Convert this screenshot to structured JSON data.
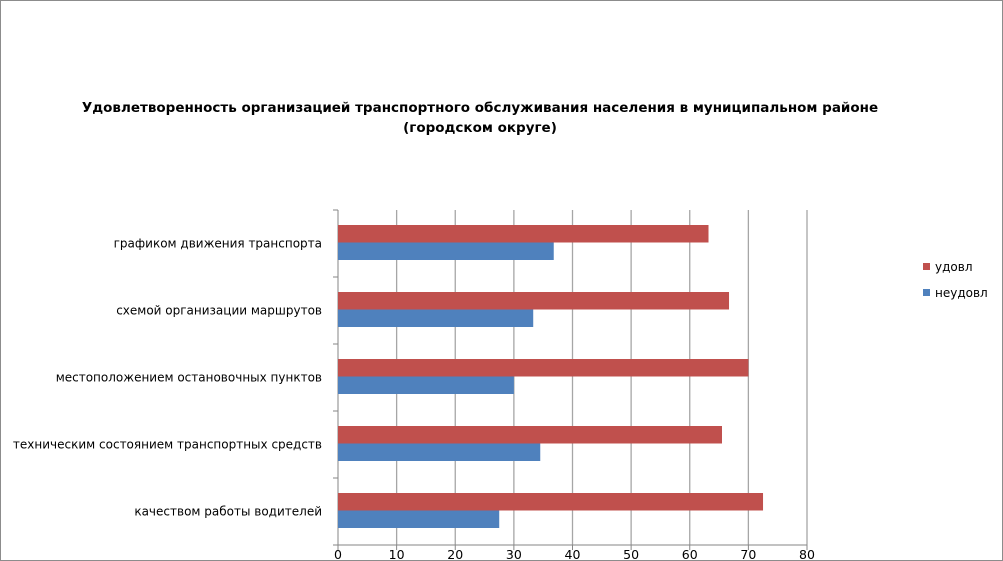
{
  "chart_data": {
    "type": "bar",
    "orientation": "horizontal",
    "title": "Удовлетворенность организацией транспортного обслуживания населения в муниципальном районе (городском округе)",
    "title_lines": [
      "Удовлетворенность организацией транспортного обслуживания населения в муниципальном районе",
      "(городском округе)"
    ],
    "categories": [
      "графиком движения  транспорта",
      "схемой организации маршрутов",
      "местоположением  остановочных пунктов",
      "техническим  состоянием транспортных средств",
      "качеством  работы водителей"
    ],
    "series": [
      {
        "name": "удовл",
        "color": "#c0504d",
        "values": [
          63.2,
          66.7,
          70,
          65.5,
          72.5
        ]
      },
      {
        "name": "неудовл",
        "color": "#4f81bd",
        "values": [
          36.8,
          33.3,
          30,
          34.5,
          27.5
        ]
      }
    ],
    "xlim": [
      0,
      80
    ],
    "xticks": [
      0,
      10,
      20,
      30,
      40,
      50,
      60,
      70,
      80
    ],
    "grid": true,
    "legend": "right",
    "xlabel": "",
    "ylabel": ""
  }
}
